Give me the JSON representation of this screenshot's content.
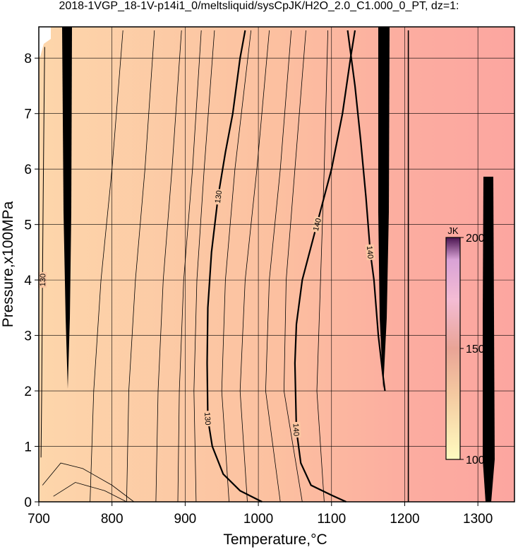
{
  "chart_data": {
    "type": "contour",
    "title": "2018-1VGP_18-1V-p14i1_0/meltsliquid/sysCpJK/H2O_2.0_C1.000_0_PT, dz=1:",
    "x_label": "Temperature,°C",
    "y_label": "Pressure,x100MPa",
    "xlim": [
      700,
      1350
    ],
    "ylim": [
      0,
      8.5
    ],
    "xticks": [
      700,
      800,
      900,
      1000,
      1100,
      1200,
      1300
    ],
    "yticks": [
      0,
      1,
      2,
      3,
      4,
      5,
      6,
      7,
      8
    ],
    "grid": true,
    "contours": [
      {
        "level": 130,
        "width": 2.2,
        "x": [
          1005,
          975,
          952,
          937,
          931,
          930,
          931,
          936,
          945,
          955,
          965,
          975,
          982
        ],
        "y": [
          0,
          0.2,
          0.5,
          1,
          1.5,
          2.5,
          3.5,
          4.5,
          5.5,
          6.3,
          7,
          8,
          8.5
        ]
      },
      {
        "level": 140,
        "width": 2.2,
        "x": [
          1120,
          1100,
          1072,
          1058,
          1052,
          1050,
          1052,
          1060,
          1080,
          1100,
          1115,
          1126,
          1132
        ],
        "y": [
          0,
          0.12,
          0.3,
          0.7,
          1.3,
          2.5,
          3.2,
          4,
          5,
          6,
          7,
          8,
          8.5
        ]
      },
      {
        "level": 140,
        "width": 2.2,
        "x": [
          1122,
          1132,
          1140,
          1147,
          1153,
          1158,
          1164,
          1170,
          1173
        ],
        "y": [
          8.5,
          7.5,
          6.5,
          5.5,
          4.5,
          4,
          3,
          2.3,
          2
        ]
      },
      {
        "level": 130,
        "width": 1,
        "x": [
          703,
          704,
          705,
          706,
          707,
          708
        ],
        "y": [
          0.8,
          2,
          4,
          5.5,
          7,
          8.2
        ]
      },
      {
        "x": [
          1205,
          1205
        ],
        "y": [
          0,
          8.5
        ],
        "width": 1.6
      },
      {
        "x": [
          705,
          730,
          760,
          800,
          830
        ],
        "y": [
          0.3,
          0.7,
          0.6,
          0.3,
          0
        ],
        "width": 0.8
      },
      {
        "x": [
          720,
          750,
          790,
          820
        ],
        "y": [
          0.1,
          0.35,
          0.2,
          0
        ],
        "width": 0.8
      },
      {
        "x": [
          770,
          775,
          785,
          800,
          815
        ],
        "y": [
          0,
          2,
          4,
          6,
          8.5
        ],
        "width": 0.8
      },
      {
        "x": [
          820,
          823,
          832,
          845,
          858
        ],
        "y": [
          0,
          2,
          4,
          6,
          8.5
        ],
        "width": 0.8
      },
      {
        "x": [
          860,
          863,
          870,
          882,
          895
        ],
        "y": [
          0,
          2,
          4,
          6,
          8.5
        ],
        "width": 0.8
      },
      {
        "x": [
          890,
          892,
          898,
          910,
          922
        ],
        "y": [
          0,
          2,
          4,
          6,
          8.5
        ],
        "width": 0.8
      },
      {
        "x": [
          915,
          912,
          916,
          926,
          940
        ],
        "y": [
          0,
          2,
          4,
          6,
          8.5
        ],
        "width": 0.8
      },
      {
        "x": [
          960,
          950,
          955,
          968,
          990
        ],
        "y": [
          0,
          2,
          4,
          6,
          8.5
        ],
        "width": 0.8
      },
      {
        "x": [
          985,
          975,
          982,
          998,
          1015
        ],
        "y": [
          0,
          2,
          4,
          6,
          8.5
        ],
        "width": 0.8
      },
      {
        "x": [
          1030,
          1010,
          1015,
          1030,
          1045
        ],
        "y": [
          0,
          2,
          4,
          6,
          8.5
        ],
        "width": 0.8
      },
      {
        "x": [
          1060,
          1035,
          1038,
          1050,
          1065
        ],
        "y": [
          0,
          2,
          4,
          6,
          8.5
        ],
        "width": 0.8
      },
      {
        "x": [
          1090,
          1080,
          1085,
          1090,
          1095
        ],
        "y": [
          0,
          2,
          4,
          6,
          8.5
        ],
        "width": 0.8
      }
    ],
    "clim": [
      100,
      200
    ],
    "cticks": [
      100,
      150,
      200
    ],
    "colorbar_label": "JK"
  }
}
